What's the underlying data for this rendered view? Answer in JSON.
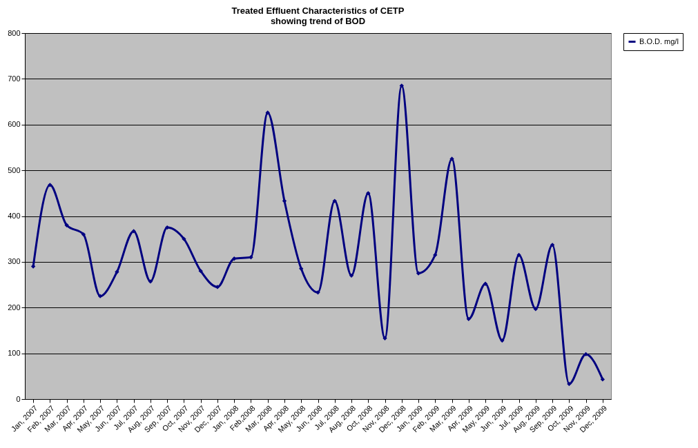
{
  "chart_data": {
    "type": "line",
    "title": "Treated Effluent Characteristics of CETP\nshowing trend of BOD",
    "categories": [
      "Jan, 2007",
      "Feb, 2007",
      "Mar, 2007",
      "Apr, 2007",
      "May, 2007",
      "Jun, 2007",
      "Jul, 2007",
      "Aug, 2007",
      "Sep, 2007",
      "Oct, 2007",
      "Nov, 2007",
      "Dec, 2007",
      "Jan, 2008",
      "Feb,2008",
      "Mar, 2008",
      "Apr, 2008",
      "May, 2008",
      "Jun, 2008",
      "Jul, 2008",
      "Aug, 2008",
      "Oct, 2008",
      "Nov, 2008",
      "Dec, 2008",
      "Jan, 2009",
      "Feb, 2009",
      "Mar, 2009",
      "Apr, 2009",
      "May, 2009",
      "Jun, 2009",
      "Jul, 2009",
      "Aug, 2009",
      "Sep, 2009",
      "Oct, 2009",
      "Nov, 2009",
      "Dec, 2009"
    ],
    "series": [
      {
        "name": "B.O.D. mg/l",
        "color": "#000080",
        "values": [
          290,
          468,
          380,
          360,
          225,
          278,
          367,
          257,
          375,
          350,
          280,
          245,
          307,
          310,
          626,
          433,
          285,
          233,
          433,
          270,
          450,
          133,
          685,
          275,
          315,
          525,
          175,
          252,
          128,
          315,
          197,
          337,
          33,
          98,
          43
        ]
      }
    ],
    "ylim": [
      0,
      800
    ],
    "yticks": [
      0,
      100,
      200,
      300,
      400,
      500,
      600,
      700,
      800
    ],
    "grid": "y",
    "legend": "right",
    "marker": "diamond",
    "line_style": "solid"
  }
}
